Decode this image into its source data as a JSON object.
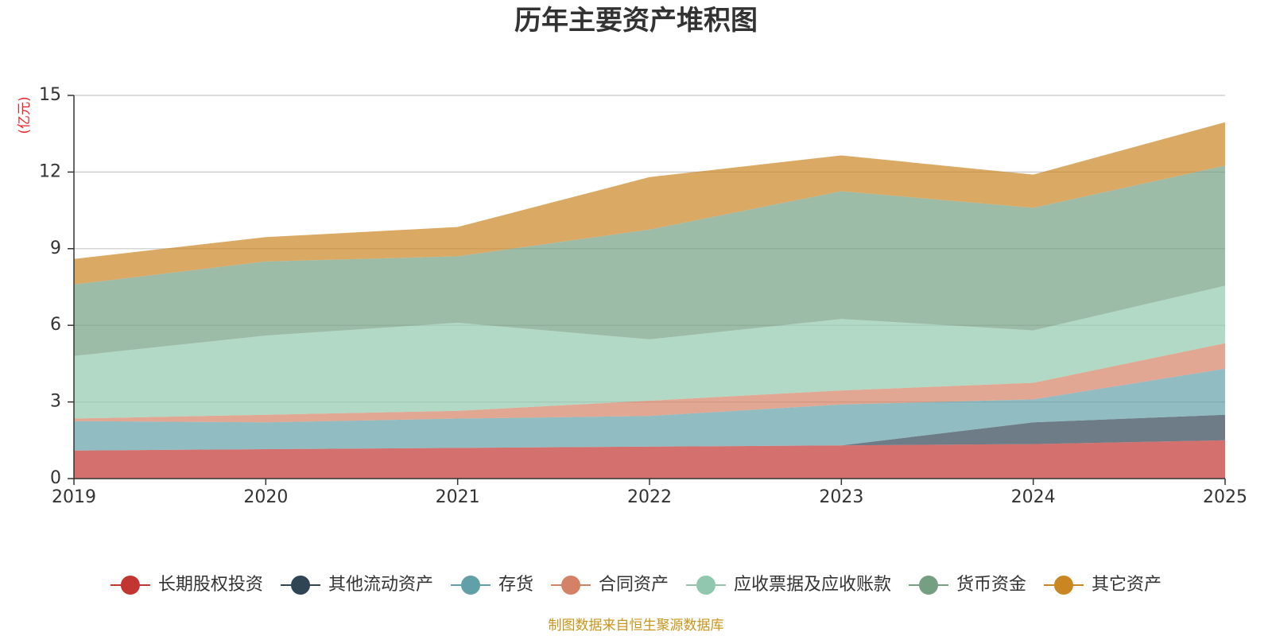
{
  "chart_data": {
    "type": "area",
    "stacked": true,
    "title": "历年主要资产堆积图",
    "ylabel": "(亿元)",
    "xlabel": "",
    "x": [
      "2019",
      "2020",
      "2021",
      "2022",
      "2023",
      "2024",
      "2025"
    ],
    "ylim": [
      0,
      15
    ],
    "yticks": [
      "0",
      "3",
      "6",
      "9",
      "12",
      "15"
    ],
    "grid": true,
    "legend_position": "bottom",
    "series": [
      {
        "name": "长期股权投资",
        "color": "#c23531",
        "values": [
          1.1,
          1.15,
          1.2,
          1.25,
          1.3,
          1.35,
          1.5
        ]
      },
      {
        "name": "其他流动资产",
        "color": "#2f4554",
        "values": [
          0.0,
          0.0,
          0.0,
          0.0,
          0.0,
          0.85,
          1.0
        ]
      },
      {
        "name": "存货",
        "color": "#61a0a8",
        "values": [
          1.15,
          1.05,
          1.15,
          1.2,
          1.6,
          0.9,
          1.8
        ]
      },
      {
        "name": "合同资产",
        "color": "#d48265",
        "values": [
          0.1,
          0.3,
          0.3,
          0.6,
          0.55,
          0.65,
          1.0
        ]
      },
      {
        "name": "应收票据及应收账款",
        "color": "#91c7ae",
        "values": [
          2.45,
          3.1,
          3.45,
          2.4,
          2.8,
          2.05,
          2.25
        ]
      },
      {
        "name": "货币资金",
        "color": "#749f83",
        "values": [
          2.8,
          2.9,
          2.6,
          4.3,
          5.0,
          4.8,
          4.7
        ]
      },
      {
        "name": "其它资产",
        "color": "#ca8622",
        "values": [
          1.0,
          0.95,
          1.15,
          2.05,
          1.4,
          1.3,
          1.7
        ]
      }
    ]
  },
  "footer": {
    "source": "制图数据来自恒生聚源数据库",
    "source_color": "#c8951b",
    "unit_color": "#e8252a"
  }
}
